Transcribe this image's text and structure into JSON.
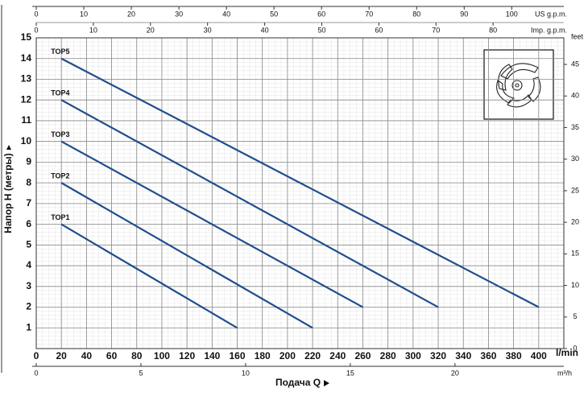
{
  "chart_data": {
    "type": "line",
    "y_label": "Напор H (метры)",
    "x_label": "Подача Q",
    "x_unit": "l/min",
    "xlim": [
      0,
      420
    ],
    "xticks": [
      0,
      20,
      40,
      60,
      80,
      100,
      120,
      140,
      160,
      180,
      200,
      220,
      240,
      260,
      280,
      300,
      320,
      340,
      360,
      380,
      400
    ],
    "ylim": [
      0,
      15
    ],
    "yticks": [
      1,
      2,
      3,
      4,
      5,
      6,
      7,
      8,
      9,
      10,
      11,
      12,
      13,
      14,
      15
    ],
    "grid": true,
    "bottom_axis": {
      "label": "m³/h",
      "xlim": [
        0,
        25.2
      ],
      "xticks": [
        0,
        5,
        10,
        15,
        20
      ]
    },
    "top_axis_us": {
      "label": "US g.p.m.",
      "xlim": [
        0,
        110.96
      ],
      "xticks": [
        0,
        10,
        20,
        30,
        40,
        50,
        60,
        70,
        80,
        90,
        100
      ]
    },
    "top_axis_imp": {
      "label": "Imp. g.p.m.",
      "xlim": [
        0,
        92.39
      ],
      "xticks": [
        0,
        10,
        20,
        30,
        40,
        50,
        60,
        70,
        80
      ]
    },
    "right_axis": {
      "label": "feet",
      "ylim": [
        0,
        49.21
      ],
      "yticks": [
        0,
        5,
        10,
        15,
        20,
        25,
        30,
        35,
        40,
        45
      ]
    },
    "series": [
      {
        "name": "TOP1",
        "color": "#1f4e8c",
        "x": [
          20,
          160
        ],
        "values": [
          6,
          1
        ]
      },
      {
        "name": "TOP2",
        "color": "#1f4e8c",
        "x": [
          20,
          220
        ],
        "values": [
          8,
          1
        ]
      },
      {
        "name": "TOP3",
        "color": "#1f4e8c",
        "x": [
          20,
          260
        ],
        "values": [
          10,
          2
        ]
      },
      {
        "name": "TOP4",
        "color": "#1f4e8c",
        "x": [
          20,
          320
        ],
        "values": [
          12,
          2
        ]
      },
      {
        "name": "TOP5",
        "color": "#1f4e8c",
        "x": [
          20,
          400
        ],
        "values": [
          14,
          2
        ]
      }
    ]
  }
}
